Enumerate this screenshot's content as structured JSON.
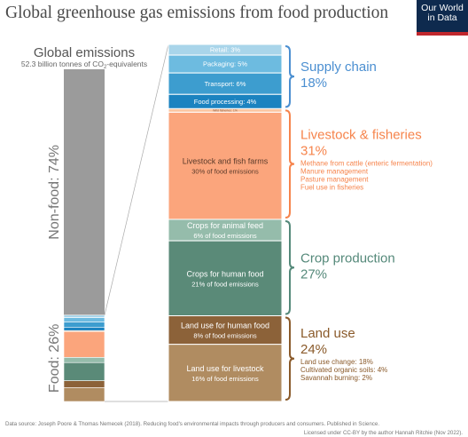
{
  "header": {
    "title": "Global greenhouse gas emissions from food production",
    "logo_line1": "Our World",
    "logo_line2": "in Data"
  },
  "chart_data": {
    "type": "bar",
    "stacked": true,
    "total": {
      "title": "Global emissions",
      "subtitle_prefix": "52.3 billion tonnes of CO",
      "subtitle_sub": "2",
      "subtitle_suffix": "-equivalents",
      "nonfood_label": "Non-food: 74%",
      "nonfood_value": 74,
      "food_label": "Food: 26%",
      "food_value": 26
    },
    "segments": [
      {
        "label": "Retail: 3%",
        "value": 3,
        "color": "#a9d5ea",
        "group": "supply"
      },
      {
        "label": "Packaging: 5%",
        "value": 5,
        "color": "#6dbbe0",
        "group": "supply"
      },
      {
        "label": "Transport: 6%",
        "value": 6,
        "color": "#3d9dcf",
        "group": "supply"
      },
      {
        "label": "Food processing: 4%",
        "value": 4,
        "color": "#1b83c0",
        "group": "supply"
      },
      {
        "label": "Wild fisheries: 1%",
        "value": 1,
        "color": "#fbc6a2",
        "group": "livestock"
      },
      {
        "label": "Livestock and fish farms",
        "sublabel": "30% of food emissions",
        "value": 30,
        "color": "#fba57c",
        "group": "livestock"
      },
      {
        "label": "Crops for animal feed",
        "sublabel": "6% of food emissions",
        "value": 6,
        "color": "#95bcab",
        "group": "crop"
      },
      {
        "label": "Crops for human food",
        "sublabel": "21% of food emissions",
        "value": 21,
        "color": "#5a8a78",
        "group": "crop"
      },
      {
        "label": "Land use for human food",
        "sublabel": "8% of food emissions",
        "value": 8,
        "color": "#8c6239",
        "group": "land"
      },
      {
        "label": "Land use for livestock",
        "sublabel": "16% of food emissions",
        "value": 16,
        "color": "#b08c61",
        "group": "land"
      }
    ],
    "groups": [
      {
        "key": "supply",
        "name": "Supply chain",
        "percent": "18%",
        "color": "#4b8fd1",
        "details": []
      },
      {
        "key": "livestock",
        "name": "Livestock & fisheries",
        "percent": "31%",
        "color": "#f6844c",
        "details": [
          "Methane from cattle (enteric fermentation)",
          "Manure management",
          "Pasture management",
          "Fuel use in fisheries"
        ]
      },
      {
        "key": "crop",
        "name": "Crop production",
        "percent": "27%",
        "color": "#55897a",
        "details": []
      },
      {
        "key": "land",
        "name": "Land use",
        "percent": "24%",
        "color": "#8a5a2a",
        "details": [
          "Land use change: 18%",
          "Cultivated organic soils: 4%",
          "Savannah burning: 2%"
        ]
      }
    ]
  },
  "footer": {
    "source": "Data source: Joseph Poore & Thomas Nemecek (2018). Reducing food's environmental impacts through producers and consumers. Published in Science.",
    "license": "Licensed under CC-BY by the author Hannah Ritchie (Nov 2022)."
  }
}
